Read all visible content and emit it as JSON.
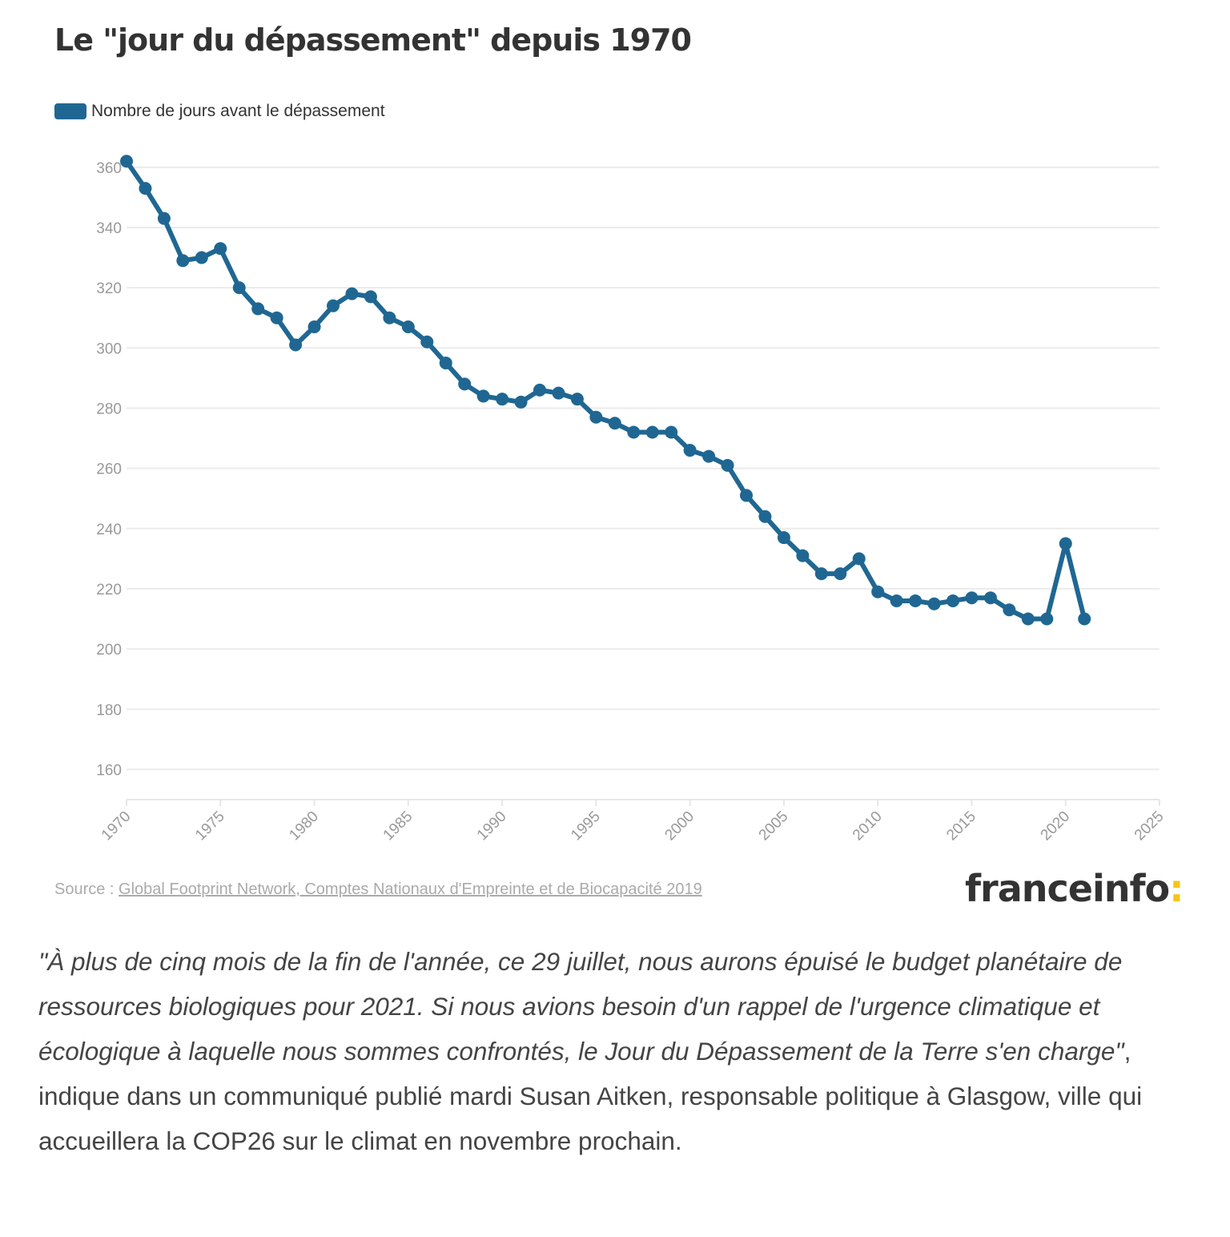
{
  "header": {
    "title": "Le \"jour du dépassement\" depuis 1970"
  },
  "legend": {
    "label": "Nombre de jours avant le dépassement",
    "color": "#1f6792"
  },
  "chart_data": {
    "type": "line",
    "title": "Le \"jour du dépassement\" depuis 1970",
    "xlabel": "",
    "ylabel": "",
    "series": [
      {
        "name": "Nombre de jours avant le dépassement",
        "color": "#1f6792",
        "x": [
          1970,
          1971,
          1972,
          1973,
          1974,
          1975,
          1976,
          1977,
          1978,
          1979,
          1980,
          1981,
          1982,
          1983,
          1984,
          1985,
          1986,
          1987,
          1988,
          1989,
          1990,
          1991,
          1992,
          1993,
          1994,
          1995,
          1996,
          1997,
          1998,
          1999,
          2000,
          2001,
          2002,
          2003,
          2004,
          2005,
          2006,
          2007,
          2008,
          2009,
          2010,
          2011,
          2012,
          2013,
          2014,
          2015,
          2016,
          2017,
          2018,
          2019,
          2020,
          2021
        ],
        "values": [
          362,
          353,
          343,
          329,
          330,
          333,
          320,
          313,
          310,
          301,
          307,
          314,
          318,
          317,
          310,
          307,
          302,
          295,
          288,
          284,
          283,
          282,
          286,
          285,
          283,
          277,
          275,
          272,
          272,
          272,
          266,
          264,
          261,
          251,
          244,
          237,
          231,
          225,
          225,
          230,
          219,
          216,
          216,
          215,
          216,
          217,
          217,
          213,
          210,
          210,
          235,
          210
        ]
      }
    ],
    "xlim": [
      1970,
      2025
    ],
    "ylim": [
      150,
      365
    ],
    "x_ticks": [
      "1970",
      "1975",
      "1980",
      "1985",
      "1990",
      "1995",
      "2000",
      "2005",
      "2010",
      "2015",
      "2020",
      "2025"
    ],
    "y_ticks": [
      "160",
      "180",
      "200",
      "220",
      "240",
      "260",
      "280",
      "300",
      "320",
      "340",
      "360"
    ],
    "grid": true,
    "legend_position": "top-left"
  },
  "footer": {
    "source_prefix": "Source : ",
    "source_link": "Global Footprint Network, Comptes Nationaux d'Empreinte et de Biocapacité 2019",
    "logo_text": "franceinfo",
    "logo_colon": ":"
  },
  "article": {
    "quote": "\"À plus de cinq mois de la fin de l'année, ce 29 juillet, nous aurons épuisé le budget planétaire de ressources biologiques pour 2021. Si nous avions besoin d'un rappel de l'urgence climatique et écologique à laquelle nous sommes confrontés, le Jour du Dépassement de la Terre s'en charge\"",
    "rest": ", indique dans un communiqué publié mardi Susan Aitken, responsable politique à Glasgow, ville qui accueillera la COP26 sur le climat en novembre prochain."
  }
}
